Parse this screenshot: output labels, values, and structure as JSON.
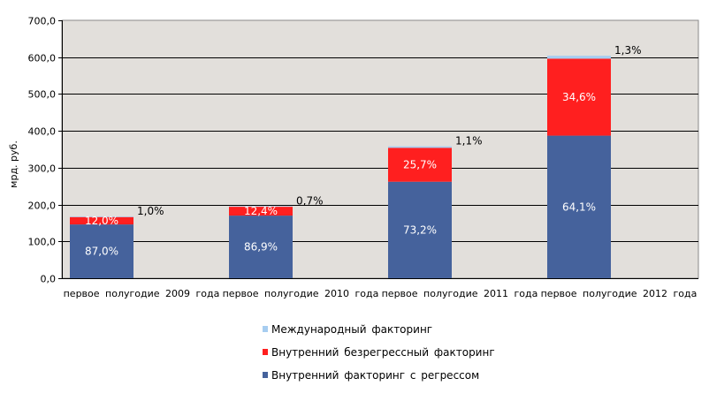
{
  "chart_data": {
    "type": "bar",
    "stacked": true,
    "ylabel": "мрд. руб.",
    "ylim": [
      0,
      700
    ],
    "yticks": [
      "0,0",
      "100,0",
      "200,0",
      "300,0",
      "400,0",
      "500,0",
      "600,0",
      "700,0"
    ],
    "categories": [
      "первое полугодие 2009 года",
      "первое полугодие 2010 года",
      "первое полугодие 2011 года",
      "первое полугодие 2012 года"
    ],
    "series": [
      {
        "name": "Внутренний факторинг с регрессом",
        "color": "#45629c",
        "values": [
          146,
          170,
          262,
          387
        ],
        "labels": [
          "87,0%",
          "86,9%",
          "73,2%",
          "64,1%"
        ]
      },
      {
        "name": "Внутренний безрегрессный факторинг",
        "color": "#ff1f1f",
        "values": [
          20,
          24,
          92,
          209
        ],
        "labels": [
          "12,0%",
          "12,4%",
          "25,7%",
          "34,6%"
        ]
      },
      {
        "name": "Международный факторинг",
        "color": "#a7cdf0",
        "values": [
          1.7,
          1.4,
          3.9,
          7.8
        ],
        "labels": [
          "1,0%",
          "0,7%",
          "1,1%",
          "1,3%"
        ]
      }
    ],
    "legend": {
      "position": "bottom",
      "order": [
        "Международный факторинг",
        "Внутренний безрегрессный факторинг",
        "Внутренний факторинг с регрессом"
      ]
    },
    "grid": true,
    "plot_background": "#e2dfdb"
  }
}
